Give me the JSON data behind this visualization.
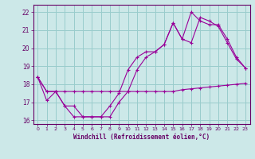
{
  "xlabel": "Windchill (Refroidissement éolien,°C)",
  "bg_color": "#cce8e8",
  "line_color": "#990099",
  "grid_color": "#99cccc",
  "axis_color": "#660066",
  "label_color": "#660066",
  "ylim": [
    15.8,
    22.4
  ],
  "xlim": [
    -0.5,
    23.5
  ],
  "yticks": [
    16,
    17,
    18,
    19,
    20,
    21,
    22
  ],
  "xticks": [
    0,
    1,
    2,
    3,
    4,
    5,
    6,
    7,
    8,
    9,
    10,
    11,
    12,
    13,
    14,
    15,
    16,
    17,
    18,
    19,
    20,
    21,
    22,
    23
  ],
  "line1_x": [
    0,
    1,
    2,
    3,
    4,
    5,
    6,
    7,
    8,
    9,
    10,
    11,
    12,
    13,
    14,
    15,
    16,
    17,
    18,
    19,
    20,
    21,
    22,
    23
  ],
  "line1_y": [
    18.4,
    17.6,
    17.6,
    17.6,
    17.6,
    17.6,
    17.6,
    17.6,
    17.6,
    17.6,
    17.6,
    17.6,
    17.6,
    17.6,
    17.6,
    17.6,
    17.7,
    17.75,
    17.8,
    17.85,
    17.9,
    17.95,
    18.0,
    18.05
  ],
  "line2_x": [
    0,
    1,
    2,
    3,
    4,
    5,
    6,
    7,
    8,
    9,
    10,
    11,
    12,
    13,
    14,
    15,
    16,
    17,
    18,
    19,
    20,
    21,
    22,
    23
  ],
  "line2_y": [
    18.4,
    17.1,
    17.6,
    16.8,
    16.2,
    16.2,
    16.2,
    16.2,
    16.2,
    17.0,
    17.6,
    18.8,
    19.5,
    19.8,
    20.2,
    21.4,
    20.5,
    20.3,
    21.7,
    21.5,
    21.2,
    20.3,
    19.4,
    18.9
  ],
  "line3_x": [
    0,
    1,
    2,
    3,
    4,
    5,
    6,
    7,
    8,
    9,
    10,
    11,
    12,
    13,
    14,
    15,
    16,
    17,
    18,
    19,
    20,
    21,
    22,
    23
  ],
  "line3_y": [
    18.4,
    17.6,
    17.6,
    16.8,
    16.8,
    16.2,
    16.2,
    16.2,
    16.8,
    17.5,
    18.8,
    19.5,
    19.8,
    19.8,
    20.2,
    21.4,
    20.5,
    22.0,
    21.5,
    21.3,
    21.3,
    20.5,
    19.5,
    18.9
  ]
}
